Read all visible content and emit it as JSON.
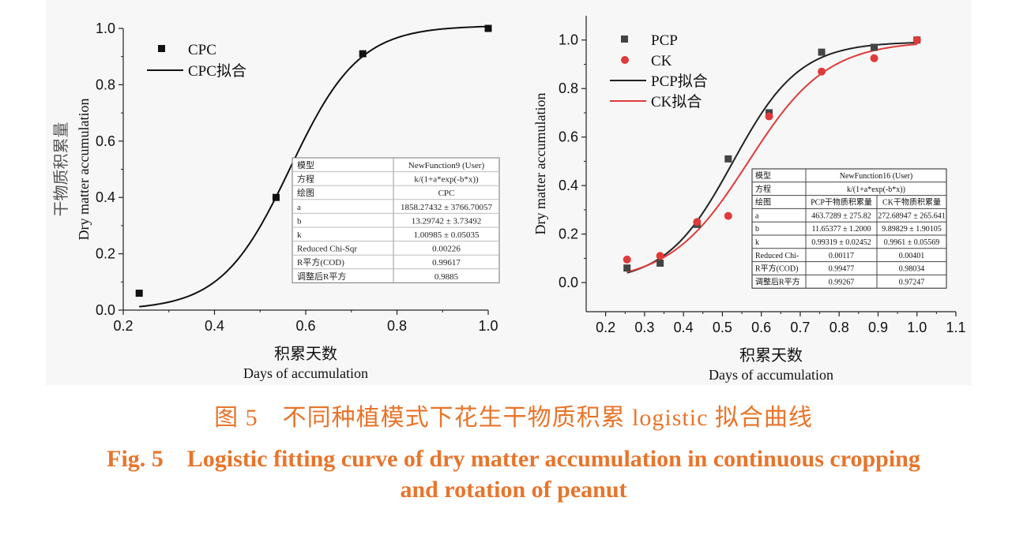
{
  "chart_data": [
    {
      "type": "scatter",
      "xlabel_cn": "积累天数",
      "xlabel": "Days of accumulation",
      "ylabel_cn": "干物质积累量",
      "ylabel": "Dry matter accumulation",
      "xlim": [
        0.2,
        1.0
      ],
      "ylim": [
        0.0,
        1.0
      ],
      "xticks": [
        "0.2",
        "0.4",
        "0.6",
        "0.8",
        "1.0"
      ],
      "yticks": [
        "0.0",
        "0.2",
        "0.4",
        "0.6",
        "0.8",
        "1.0"
      ],
      "grid": false,
      "legend_position": "top-left",
      "series": [
        {
          "name": "CPC",
          "kind": "points",
          "marker": "square",
          "color": "#111111",
          "x": [
            0.235,
            0.535,
            0.725,
            1.0
          ],
          "y": [
            0.06,
            0.4,
            0.91,
            1.0
          ]
        },
        {
          "name": "CPC拟合",
          "kind": "fit",
          "color": "#111111",
          "params": {
            "a": 1858.27432,
            "b": 13.29742,
            "k": 1.00985
          },
          "x_range": [
            0.235,
            1.0
          ]
        }
      ],
      "fit_table": {
        "rows": [
          [
            "模型",
            "NewFunction9 (User)"
          ],
          [
            "方程",
            "k/(1+a*exp(-b*x))"
          ],
          [
            "绘图",
            "CPC"
          ],
          [
            "a",
            "1858.27432 ± 3766.70057"
          ],
          [
            "b",
            "13.29742 ± 3.73492"
          ],
          [
            "k",
            "1.00985 ± 0.05035"
          ],
          [
            "Reduced Chi-Sqr",
            "0.00226"
          ],
          [
            "R平方(COD)",
            "0.99617"
          ],
          [
            "调整后R平方",
            "0.9885"
          ]
        ]
      }
    },
    {
      "type": "scatter",
      "xlabel_cn": "积累天数",
      "xlabel": "Days of accumulation",
      "ylabel": "Dry matter accumulation",
      "xlim": [
        0.15,
        1.1
      ],
      "ylim": [
        -0.12,
        1.1
      ],
      "xticks": [
        "0.2",
        "0.3",
        "0.4",
        "0.5",
        "0.6",
        "0.7",
        "0.8",
        "0.9",
        "1.0",
        "1.1"
      ],
      "yticks": [
        "0.0",
        "0.2",
        "0.4",
        "0.6",
        "0.8",
        "1.0"
      ],
      "grid": false,
      "legend_position": "top-left",
      "series": [
        {
          "name": "PCP",
          "kind": "points",
          "marker": "square",
          "color": "#444444",
          "x": [
            0.255,
            0.34,
            0.435,
            0.515,
            0.62,
            0.755,
            0.89,
            1.0
          ],
          "y": [
            0.06,
            0.08,
            0.24,
            0.51,
            0.7,
            0.95,
            0.97,
            1.0
          ]
        },
        {
          "name": "CK",
          "kind": "points",
          "marker": "circle",
          "color": "#e03a3a",
          "x": [
            0.255,
            0.34,
            0.435,
            0.515,
            0.62,
            0.755,
            0.89,
            1.0
          ],
          "y": [
            0.095,
            0.11,
            0.25,
            0.275,
            0.685,
            0.87,
            0.925,
            1.0
          ]
        },
        {
          "name": "PCP拟合",
          "kind": "fit",
          "color": "#222222",
          "params": {
            "a": 463.7289,
            "b": 11.65377,
            "k": 0.99319
          },
          "x_range": [
            0.255,
            1.0
          ]
        },
        {
          "name": "CK拟合",
          "kind": "fit",
          "color": "#e03a3a",
          "params": {
            "a": 272.68947,
            "b": 9.89829,
            "k": 0.9961
          },
          "x_range": [
            0.255,
            1.0
          ]
        }
      ],
      "fit_table": {
        "header": [
          "模型",
          "NewFunction16 (User)"
        ],
        "equation": [
          "方程",
          "k/(1+a*exp(-b*x))"
        ],
        "rows": [
          [
            "绘图",
            "PCP干物质积累量",
            "CK干物质积累量"
          ],
          [
            "a",
            "463.7289 ± 275.82",
            "272.68947 ± 265.641"
          ],
          [
            "b",
            "11.65377 ± 1.2000",
            "9.89829 ± 1.90105"
          ],
          [
            "k",
            "0.99319 ± 0.02452",
            "0.9961 ± 0.05569"
          ],
          [
            "Reduced Chi-",
            "0.00117",
            "0.00401"
          ],
          [
            "R平方(COD)",
            "0.99477",
            "0.98034"
          ],
          [
            "调整后R平方",
            "0.99267",
            "0.97247"
          ]
        ]
      }
    }
  ],
  "caption": {
    "cn": "图 5　不同种植模式下花生干物质积累 logistic 拟合曲线",
    "en_line1": "Fig. 5　Logistic fitting curve of dry matter accumulation in continuous cropping",
    "en_line2": "and rotation of peanut"
  },
  "colors": {
    "caption": "#e8742a",
    "ck": "#e03a3a",
    "pcp": "#444444"
  }
}
